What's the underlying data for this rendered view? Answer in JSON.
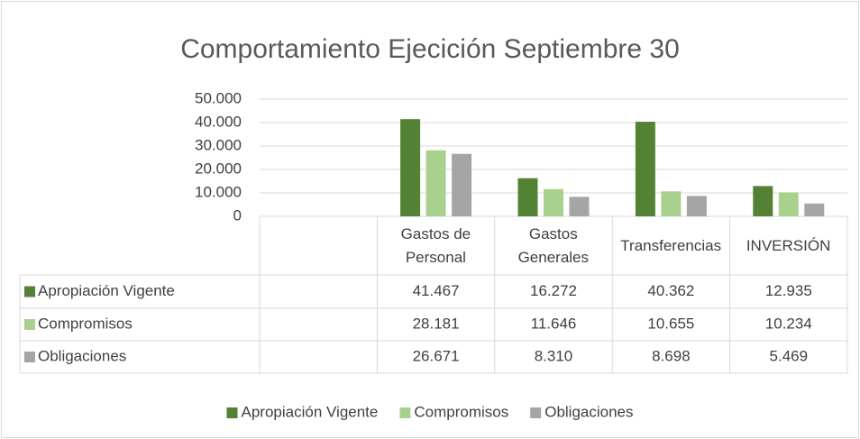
{
  "chart_data": {
    "type": "bar",
    "title": "Comportamiento Ejecición Septiembre 30",
    "categories": [
      null,
      "Gastos de Personal",
      "Gastos Generales",
      "Transferencias",
      "INVERSIÓN"
    ],
    "series": [
      {
        "name": "Apropiación Vigente",
        "color": "#548235",
        "values": [
          null,
          41467,
          16272,
          40362,
          12935
        ],
        "value_labels": [
          null,
          "41.467",
          "16.272",
          "40.362",
          "12.935"
        ]
      },
      {
        "name": "Compromisos",
        "color": "#a9d18e",
        "values": [
          null,
          28181,
          11646,
          10655,
          10234
        ],
        "value_labels": [
          null,
          "28.181",
          "11.646",
          "10.655",
          "10.234"
        ]
      },
      {
        "name": "Obligaciones",
        "color": "#a5a5a5",
        "values": [
          null,
          26671,
          8310,
          8698,
          5469
        ],
        "value_labels": [
          null,
          "26.671",
          "8.310",
          "8.698",
          "5.469"
        ]
      }
    ],
    "ylim": [
      0,
      50000
    ],
    "yticks": [
      0,
      {
        "value": 10000,
        "label": "10.000"
      },
      {
        "value": 20000,
        "label": "20.000"
      },
      {
        "value": 30000,
        "label": "30.000"
      },
      {
        "value": 40000,
        "label": "40.000"
      },
      {
        "value": 50000,
        "label": "50.000"
      }
    ],
    "grid": true,
    "legend": "bottom"
  }
}
